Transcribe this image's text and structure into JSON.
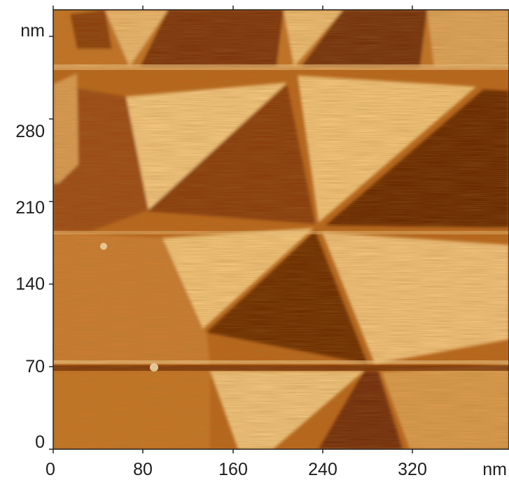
{
  "image": {
    "description_kind": "AFM topography scan",
    "colors": {
      "dark": "#6e2d06",
      "mid": "#b8661c",
      "light": "#f0c27a",
      "frame": "#222222",
      "text": "#1e1e1e"
    }
  },
  "axes": {
    "x": {
      "ticks": [
        "0",
        "80",
        "160",
        "240",
        "320"
      ],
      "unit": "nm"
    },
    "y": {
      "ticks": [
        "0",
        "70",
        "140",
        "210",
        "280"
      ],
      "unit": "nm"
    }
  }
}
